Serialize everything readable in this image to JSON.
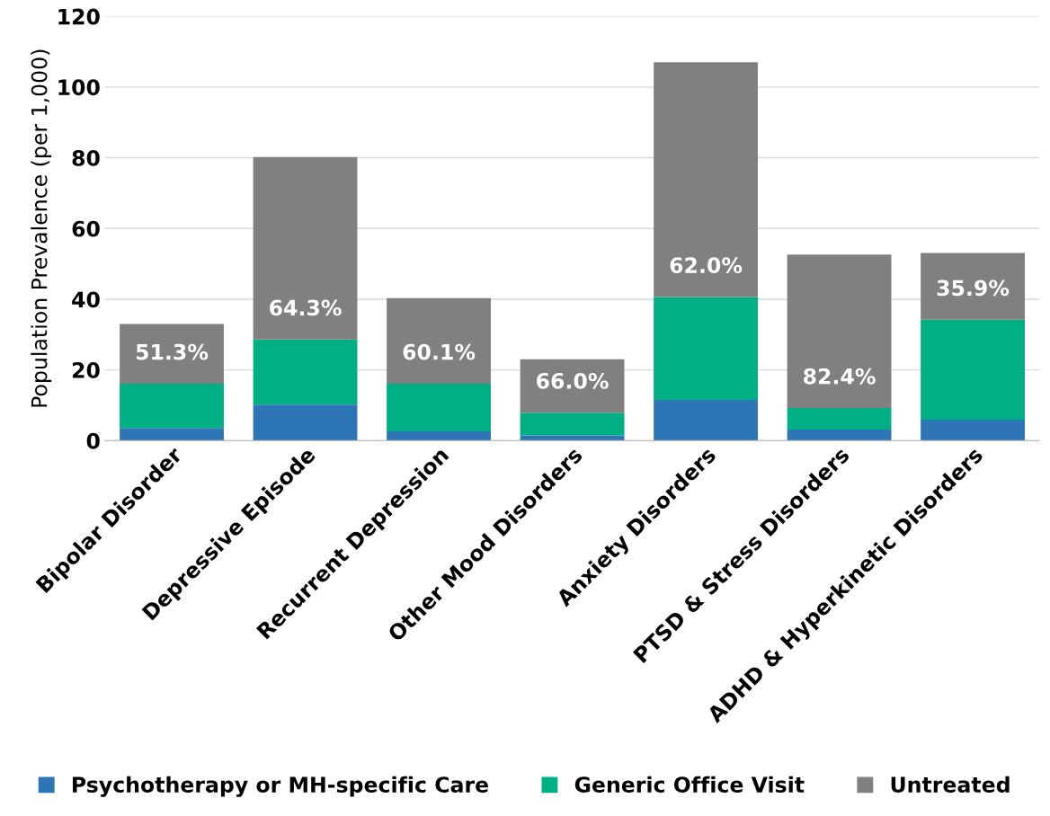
{
  "chart_data": {
    "type": "bar",
    "stacked": true,
    "ylabel": "Population Prevalence (per 1,000)",
    "categories": [
      "Bipolar Disorder",
      "Depressive Episode",
      "Recurrent Depression",
      "Other Mood Disorders",
      "Anxiety Disorders",
      "PTSD & Stress Disorders",
      "ADHD & Hyperkinetic Disorders"
    ],
    "series": [
      {
        "name": "Psychotherapy or MH-specific Care",
        "color": "#2e75b6",
        "values": [
          3.6,
          10.2,
          2.6,
          1.5,
          11.5,
          3.1,
          5.9
        ]
      },
      {
        "name": "Generic Office Visit",
        "color": "#00b084",
        "values": [
          12.5,
          18.4,
          13.5,
          6.4,
          29.1,
          6.1,
          28.3
        ]
      },
      {
        "name": "Untreated",
        "color": "#808080",
        "values": [
          16.9,
          51.6,
          24.2,
          15.1,
          66.4,
          43.4,
          18.9
        ]
      }
    ],
    "annotations": [
      "51.3%",
      "64.3%",
      "60.1%",
      "66.0%",
      "62.0%",
      "82.4%",
      "35.9%"
    ],
    "ylim": [
      0,
      120
    ],
    "yticks": [
      0,
      20,
      40,
      60,
      80,
      100,
      120
    ],
    "grid": "y",
    "legend": "bottom"
  }
}
